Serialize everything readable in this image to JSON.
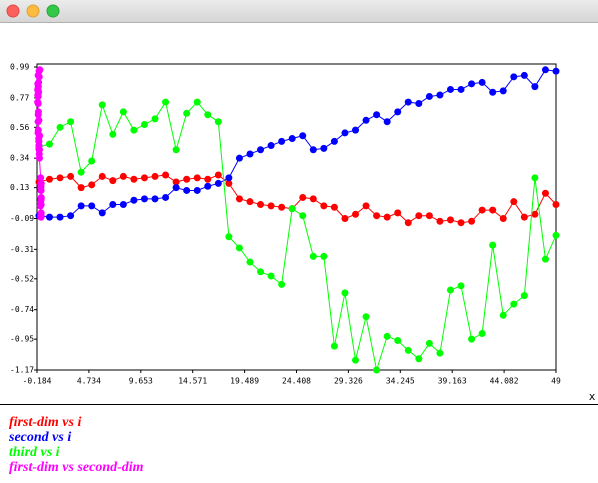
{
  "chart_data": {
    "type": "line",
    "xlabel": "x",
    "xlim": [
      -0.184,
      49
    ],
    "ylim": [
      -1.17,
      0.99
    ],
    "xticks": [
      -0.184,
      4.734,
      9.653,
      14.571,
      19.489,
      24.408,
      29.326,
      34.245,
      39.163,
      44.082,
      49
    ],
    "yticks": [
      0.99,
      0.77,
      0.56,
      0.34,
      0.13,
      -0.09,
      -0.31,
      -0.52,
      -0.74,
      -0.95,
      -1.17
    ],
    "x": [
      0,
      1,
      2,
      3,
      4,
      5,
      6,
      7,
      8,
      9,
      10,
      11,
      12,
      13,
      14,
      15,
      16,
      17,
      18,
      19,
      20,
      21,
      22,
      23,
      24,
      25,
      26,
      27,
      28,
      29,
      30,
      31,
      32,
      33,
      34,
      35,
      36,
      37,
      38,
      39,
      40,
      41,
      42,
      43,
      44,
      45,
      46,
      47,
      48,
      49
    ],
    "series": [
      {
        "name": "first-dim vs i",
        "color": "#ff0000",
        "values": [
          0.17,
          0.19,
          0.2,
          0.21,
          0.13,
          0.15,
          0.21,
          0.18,
          0.21,
          0.19,
          0.2,
          0.21,
          0.22,
          0.17,
          0.19,
          0.2,
          0.19,
          0.22,
          0.16,
          0.05,
          0.03,
          0.01,
          0.0,
          -0.01,
          -0.02,
          0.06,
          0.05,
          0.0,
          -0.01,
          -0.09,
          -0.06,
          0.0,
          -0.07,
          -0.08,
          -0.05,
          -0.12,
          -0.07,
          -0.07,
          -0.11,
          -0.1,
          -0.12,
          -0.11,
          -0.03,
          -0.03,
          -0.09,
          0.03,
          -0.08,
          -0.06,
          0.09,
          0.01
        ]
      },
      {
        "name": "second vs i",
        "color": "#0000ff",
        "values": [
          -0.07,
          -0.08,
          -0.08,
          -0.07,
          0.0,
          0.0,
          -0.05,
          0.01,
          0.01,
          0.04,
          0.05,
          0.05,
          0.06,
          0.13,
          0.11,
          0.11,
          0.14,
          0.16,
          0.2,
          0.34,
          0.37,
          0.4,
          0.43,
          0.46,
          0.48,
          0.5,
          0.4,
          0.41,
          0.46,
          0.52,
          0.54,
          0.61,
          0.65,
          0.6,
          0.67,
          0.74,
          0.73,
          0.78,
          0.79,
          0.83,
          0.83,
          0.87,
          0.88,
          0.81,
          0.82,
          0.92,
          0.93,
          0.85,
          0.97,
          0.96
        ]
      },
      {
        "name": "third vs i",
        "color": "#00ff00",
        "values": [
          0.42,
          0.44,
          0.56,
          0.6,
          0.24,
          0.32,
          0.72,
          0.51,
          0.67,
          0.54,
          0.58,
          0.62,
          0.74,
          0.4,
          0.66,
          0.74,
          0.65,
          0.6,
          -0.22,
          -0.3,
          -0.4,
          -0.47,
          -0.5,
          -0.56,
          -0.02,
          -0.07,
          -0.36,
          -0.36,
          -1.0,
          -0.62,
          -1.1,
          -0.79,
          -1.17,
          -0.93,
          -0.96,
          -1.03,
          -1.09,
          -0.98,
          -1.05,
          -0.6,
          -0.57,
          -0.95,
          -0.91,
          -0.28,
          -0.78,
          -0.7,
          -0.64,
          0.2,
          -0.38,
          -0.21
        ]
      },
      {
        "name": "first-dim vs second-dim",
        "color": "#ff00ff",
        "x": [
          0.17,
          0.19,
          0.2,
          0.21,
          0.13,
          0.15,
          0.21,
          0.18,
          0.21,
          0.19,
          0.2,
          0.21,
          0.22,
          0.17,
          0.19,
          0.2,
          0.19,
          0.22,
          0.16,
          0.05,
          0.03,
          0.01,
          0.0,
          -0.01,
          -0.02,
          0.06,
          0.05,
          0.0,
          -0.01,
          -0.09,
          -0.06,
          0.0,
          -0.07,
          -0.08,
          -0.05,
          -0.12,
          -0.07,
          -0.07,
          -0.11,
          -0.1,
          -0.12,
          -0.11,
          -0.03,
          -0.03,
          -0.09,
          0.03,
          -0.08,
          -0.06,
          0.09,
          0.01
        ],
        "values": [
          -0.07,
          -0.08,
          -0.08,
          -0.07,
          0.0,
          0.0,
          -0.05,
          0.01,
          0.01,
          0.04,
          0.05,
          0.05,
          0.06,
          0.13,
          0.11,
          0.11,
          0.14,
          0.16,
          0.2,
          0.34,
          0.37,
          0.4,
          0.43,
          0.46,
          0.48,
          0.5,
          0.4,
          0.41,
          0.46,
          0.52,
          0.54,
          0.61,
          0.65,
          0.6,
          0.67,
          0.74,
          0.73,
          0.78,
          0.79,
          0.83,
          0.83,
          0.87,
          0.88,
          0.81,
          0.82,
          0.92,
          0.93,
          0.85,
          0.97,
          0.96
        ]
      }
    ]
  }
}
